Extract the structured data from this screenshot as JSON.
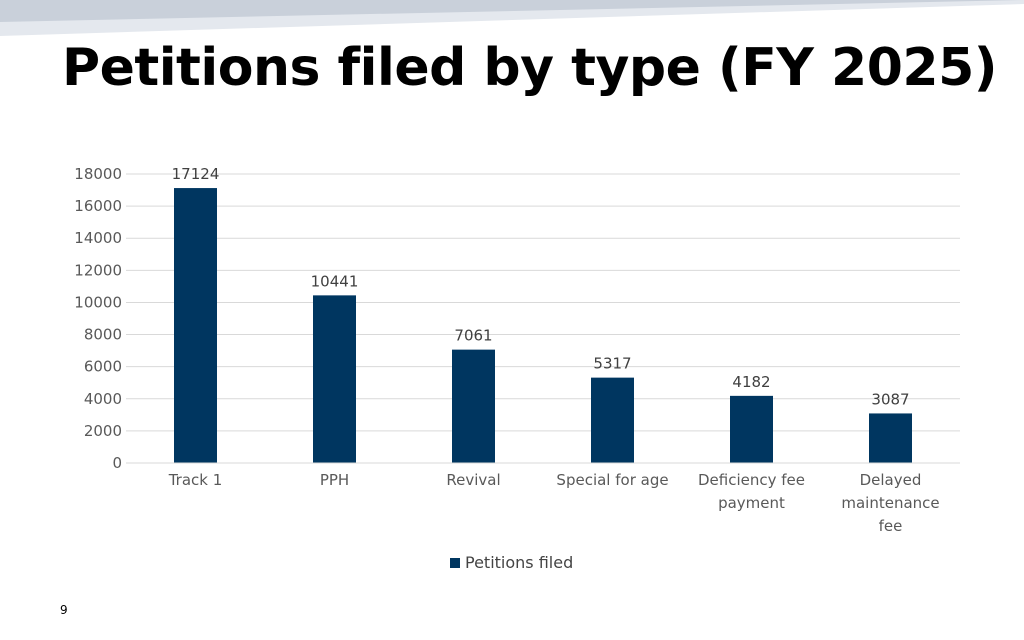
{
  "slide": {
    "title": "Petitions filed by type (FY 2025)",
    "page_number": "9"
  },
  "colors": {
    "bar": "#003660",
    "gridline": "#d9d9d9",
    "axis_text": "#595959",
    "band_light": "#e4e8ee",
    "band_dark": "#c9d0da"
  },
  "chart_data": {
    "type": "bar",
    "title": "",
    "xlabel": "",
    "ylabel": "",
    "categories": [
      "Track 1",
      "PPH",
      "Revival",
      "Special for age",
      "Deficiency fee payment",
      "Delayed maintenance fee"
    ],
    "category_label_lines": [
      [
        "Track 1"
      ],
      [
        "PPH"
      ],
      [
        "Revival"
      ],
      [
        "Special for age"
      ],
      [
        "Deficiency fee",
        "payment"
      ],
      [
        "Delayed",
        "maintenance",
        "fee"
      ]
    ],
    "series": [
      {
        "name": "Petitions filed",
        "values": [
          17124,
          10441,
          7061,
          5317,
          4182,
          3087
        ]
      }
    ],
    "ylim": [
      0,
      18000
    ],
    "yticks": [
      0,
      2000,
      4000,
      6000,
      8000,
      10000,
      12000,
      14000,
      16000,
      18000
    ],
    "data_labels": true,
    "grid": true,
    "legend_position": "bottom"
  }
}
